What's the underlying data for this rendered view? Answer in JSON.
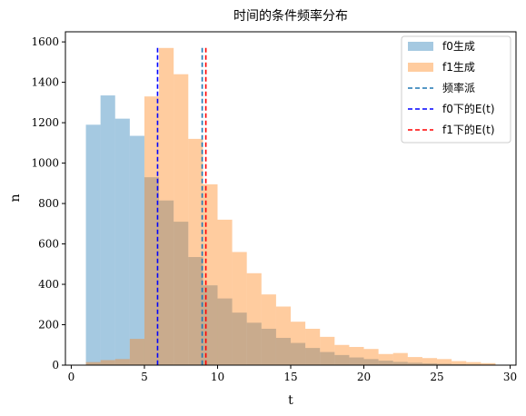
{
  "chart_data": {
    "type": "bar",
    "title": "时间的条件频率分布",
    "xlabel": "t",
    "ylabel": "n",
    "xlim": [
      -0.4,
      30.4
    ],
    "ylim": [
      0,
      1650
    ],
    "xticks": [
      0,
      5,
      10,
      15,
      20,
      25,
      30
    ],
    "yticks": [
      0,
      200,
      400,
      600,
      800,
      1000,
      1200,
      1400,
      1600
    ],
    "grid": false,
    "legend_position": "top-right",
    "series": [
      {
        "name": "f0生成",
        "kind": "histogram",
        "color": "#1f77b4",
        "opacity": 0.4,
        "bins": [
          {
            "x0": 1.0,
            "x1": 2.0,
            "value": 1190
          },
          {
            "x0": 2.0,
            "x1": 3.0,
            "value": 1335
          },
          {
            "x0": 3.0,
            "x1": 4.0,
            "value": 1220
          },
          {
            "x0": 4.0,
            "x1": 5.0,
            "value": 1135
          },
          {
            "x0": 5.0,
            "x1": 6.0,
            "value": 930
          },
          {
            "x0": 6.0,
            "x1": 7.0,
            "value": 815
          },
          {
            "x0": 7.0,
            "x1": 8.0,
            "value": 710
          },
          {
            "x0": 8.0,
            "x1": 9.0,
            "value": 535
          },
          {
            "x0": 9.0,
            "x1": 10.0,
            "value": 395
          },
          {
            "x0": 10.0,
            "x1": 11.0,
            "value": 330
          },
          {
            "x0": 11.0,
            "x1": 12.0,
            "value": 260
          },
          {
            "x0": 12.0,
            "x1": 13.0,
            "value": 210
          },
          {
            "x0": 13.0,
            "x1": 14.0,
            "value": 180
          },
          {
            "x0": 14.0,
            "x1": 15.0,
            "value": 135
          },
          {
            "x0": 15.0,
            "x1": 16.0,
            "value": 110
          },
          {
            "x0": 16.0,
            "x1": 17.0,
            "value": 85
          },
          {
            "x0": 17.0,
            "x1": 18.0,
            "value": 65
          },
          {
            "x0": 18.0,
            "x1": 19.0,
            "value": 50
          },
          {
            "x0": 19.0,
            "x1": 20.0,
            "value": 38
          },
          {
            "x0": 20.0,
            "x1": 21.0,
            "value": 30
          },
          {
            "x0": 21.0,
            "x1": 22.0,
            "value": 22
          },
          {
            "x0": 22.0,
            "x1": 23.0,
            "value": 16
          },
          {
            "x0": 23.0,
            "x1": 24.0,
            "value": 12
          },
          {
            "x0": 24.0,
            "x1": 25.0,
            "value": 9
          },
          {
            "x0": 25.0,
            "x1": 26.0,
            "value": 7
          },
          {
            "x0": 26.0,
            "x1": 27.0,
            "value": 5
          },
          {
            "x0": 27.0,
            "x1": 28.0,
            "value": 4
          },
          {
            "x0": 28.0,
            "x1": 29.0,
            "value": 3
          }
        ]
      },
      {
        "name": "f1生成",
        "kind": "histogram",
        "color": "#ff7f0e",
        "opacity": 0.4,
        "bins": [
          {
            "x0": 1.0,
            "x1": 2.0,
            "value": 15
          },
          {
            "x0": 2.0,
            "x1": 3.0,
            "value": 25
          },
          {
            "x0": 3.0,
            "x1": 4.0,
            "value": 30
          },
          {
            "x0": 4.0,
            "x1": 5.0,
            "value": 130
          },
          {
            "x0": 5.0,
            "x1": 6.0,
            "value": 1330
          },
          {
            "x0": 6.0,
            "x1": 7.0,
            "value": 1570
          },
          {
            "x0": 7.0,
            "x1": 8.0,
            "value": 1440
          },
          {
            "x0": 8.0,
            "x1": 9.0,
            "value": 1120
          },
          {
            "x0": 9.0,
            "x1": 10.0,
            "value": 895
          },
          {
            "x0": 10.0,
            "x1": 11.0,
            "value": 720
          },
          {
            "x0": 11.0,
            "x1": 12.0,
            "value": 560
          },
          {
            "x0": 12.0,
            "x1": 13.0,
            "value": 455
          },
          {
            "x0": 13.0,
            "x1": 14.0,
            "value": 350
          },
          {
            "x0": 14.0,
            "x1": 15.0,
            "value": 290
          },
          {
            "x0": 15.0,
            "x1": 16.0,
            "value": 215
          },
          {
            "x0": 16.0,
            "x1": 17.0,
            "value": 180
          },
          {
            "x0": 17.0,
            "x1": 18.0,
            "value": 140
          },
          {
            "x0": 18.0,
            "x1": 19.0,
            "value": 100
          },
          {
            "x0": 19.0,
            "x1": 20.0,
            "value": 90
          },
          {
            "x0": 20.0,
            "x1": 21.0,
            "value": 80
          },
          {
            "x0": 21.0,
            "x1": 22.0,
            "value": 55
          },
          {
            "x0": 22.0,
            "x1": 23.0,
            "value": 60
          },
          {
            "x0": 23.0,
            "x1": 24.0,
            "value": 40
          },
          {
            "x0": 24.0,
            "x1": 25.0,
            "value": 35
          },
          {
            "x0": 25.0,
            "x1": 26.0,
            "value": 30
          },
          {
            "x0": 26.0,
            "x1": 27.0,
            "value": 20
          },
          {
            "x0": 27.0,
            "x1": 28.0,
            "value": 15
          },
          {
            "x0": 28.0,
            "x1": 29.0,
            "value": 10
          }
        ]
      }
    ],
    "vlines": [
      {
        "name": "频率派",
        "x": 8.95,
        "color": "#1f77b4",
        "style": "dashed"
      },
      {
        "name": "f0下的E(t)",
        "x": 5.9,
        "color": "#0000ff",
        "style": "dashed"
      },
      {
        "name": "f1下的E(t)",
        "x": 9.2,
        "color": "#ff0000",
        "style": "dashed"
      }
    ]
  }
}
